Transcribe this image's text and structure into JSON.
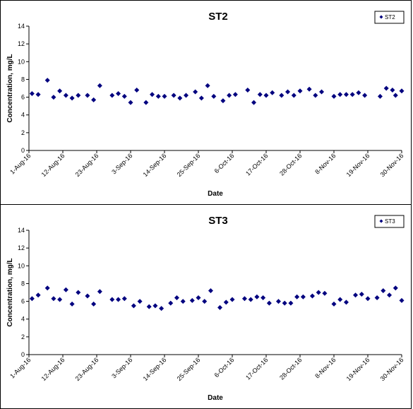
{
  "chart_data": [
    {
      "type": "scatter",
      "title": "ST2",
      "xlabel": "Date",
      "ylabel": "Concentration, mg/L",
      "ylim": [
        0,
        14
      ],
      "yticks": [
        0,
        2,
        4,
        6,
        8,
        10,
        12,
        14
      ],
      "xlim": [
        "2016-08-01",
        "2016-11-30"
      ],
      "xtick_labels": [
        "1-Aug-16",
        "12-Aug-16",
        "23-Aug-16",
        "3-Sep-16",
        "14-Sep-16",
        "25-Sep-16",
        "6-Oct-16",
        "17-Oct-16",
        "28-Oct-16",
        "8-Nov-16",
        "19-Nov-16",
        "30-Nov-16"
      ],
      "grid": false,
      "legend_position": "top-right",
      "marker_color": "#00007f",
      "series": [
        {
          "name": "ST2",
          "x": [
            "2016-08-02",
            "2016-08-04",
            "2016-08-07",
            "2016-08-09",
            "2016-08-11",
            "2016-08-13",
            "2016-08-15",
            "2016-08-17",
            "2016-08-20",
            "2016-08-22",
            "2016-08-24",
            "2016-08-28",
            "2016-08-30",
            "2016-09-01",
            "2016-09-03",
            "2016-09-05",
            "2016-09-08",
            "2016-09-10",
            "2016-09-12",
            "2016-09-14",
            "2016-09-17",
            "2016-09-19",
            "2016-09-21",
            "2016-09-24",
            "2016-09-26",
            "2016-09-28",
            "2016-09-30",
            "2016-10-03",
            "2016-10-05",
            "2016-10-07",
            "2016-10-11",
            "2016-10-13",
            "2016-10-15",
            "2016-10-17",
            "2016-10-19",
            "2016-10-22",
            "2016-10-24",
            "2016-10-26",
            "2016-10-28",
            "2016-10-31",
            "2016-11-02",
            "2016-11-04",
            "2016-11-08",
            "2016-11-10",
            "2016-11-12",
            "2016-11-14",
            "2016-11-16",
            "2016-11-18",
            "2016-11-23",
            "2016-11-25",
            "2016-11-27",
            "2016-11-28",
            "2016-11-30"
          ],
          "values": [
            6.4,
            6.3,
            7.9,
            6.0,
            6.7,
            6.2,
            5.9,
            6.2,
            6.2,
            5.7,
            7.3,
            6.2,
            6.4,
            6.1,
            5.4,
            6.8,
            5.4,
            6.3,
            6.1,
            6.1,
            6.2,
            5.9,
            6.2,
            6.6,
            5.9,
            7.3,
            6.1,
            5.6,
            6.2,
            6.3,
            6.8,
            5.4,
            6.3,
            6.2,
            6.5,
            6.2,
            6.6,
            6.2,
            6.7,
            6.9,
            6.2,
            6.6,
            6.1,
            6.3,
            6.3,
            6.3,
            6.5,
            6.2,
            6.1,
            7.0,
            6.8,
            6.2,
            6.7
          ]
        }
      ]
    },
    {
      "type": "scatter",
      "title": "ST3",
      "xlabel": "Date",
      "ylabel": "Concentration, mg/L",
      "ylim": [
        0,
        14
      ],
      "yticks": [
        0,
        2,
        4,
        6,
        8,
        10,
        12,
        14
      ],
      "xlim": [
        "2016-08-01",
        "2016-11-30"
      ],
      "xtick_labels": [
        "1-Aug-16",
        "12-Aug-16",
        "23-Aug-16",
        "3-Sep-16",
        "14-Sep-16",
        "25-Sep-16",
        "6-Oct-16",
        "17-Oct-16",
        "28-Oct-16",
        "8-Nov-16",
        "19-Nov-16",
        "30-Nov-16"
      ],
      "grid": false,
      "legend_position": "top-right",
      "marker_color": "#00007f",
      "series": [
        {
          "name": "ST3",
          "x": [
            "2016-08-02",
            "2016-08-04",
            "2016-08-07",
            "2016-08-09",
            "2016-08-11",
            "2016-08-13",
            "2016-08-15",
            "2016-08-17",
            "2016-08-20",
            "2016-08-22",
            "2016-08-24",
            "2016-08-28",
            "2016-08-30",
            "2016-09-01",
            "2016-09-04",
            "2016-09-06",
            "2016-09-09",
            "2016-09-11",
            "2016-09-13",
            "2016-09-16",
            "2016-09-18",
            "2016-09-20",
            "2016-09-23",
            "2016-09-25",
            "2016-09-27",
            "2016-09-29",
            "2016-10-02",
            "2016-10-04",
            "2016-10-06",
            "2016-10-10",
            "2016-10-12",
            "2016-10-14",
            "2016-10-16",
            "2016-10-18",
            "2016-10-21",
            "2016-10-23",
            "2016-10-25",
            "2016-10-27",
            "2016-10-29",
            "2016-11-01",
            "2016-11-03",
            "2016-11-05",
            "2016-11-08",
            "2016-11-10",
            "2016-11-12",
            "2016-11-15",
            "2016-11-17",
            "2016-11-19",
            "2016-11-22",
            "2016-11-24",
            "2016-11-26",
            "2016-11-28",
            "2016-11-30"
          ],
          "values": [
            6.3,
            6.7,
            7.5,
            6.3,
            6.2,
            7.3,
            5.7,
            7.0,
            6.6,
            5.7,
            7.1,
            6.2,
            6.2,
            6.3,
            5.5,
            6.0,
            5.4,
            5.5,
            5.2,
            5.8,
            6.4,
            6.0,
            6.1,
            6.4,
            6.0,
            7.2,
            5.3,
            5.9,
            6.2,
            6.3,
            6.2,
            6.5,
            6.4,
            5.8,
            6.0,
            5.8,
            5.8,
            6.5,
            6.5,
            6.6,
            7.0,
            6.9,
            5.7,
            6.2,
            5.9,
            6.7,
            6.8,
            6.3,
            6.4,
            7.2,
            6.7,
            7.5,
            6.1
          ]
        }
      ]
    }
  ]
}
